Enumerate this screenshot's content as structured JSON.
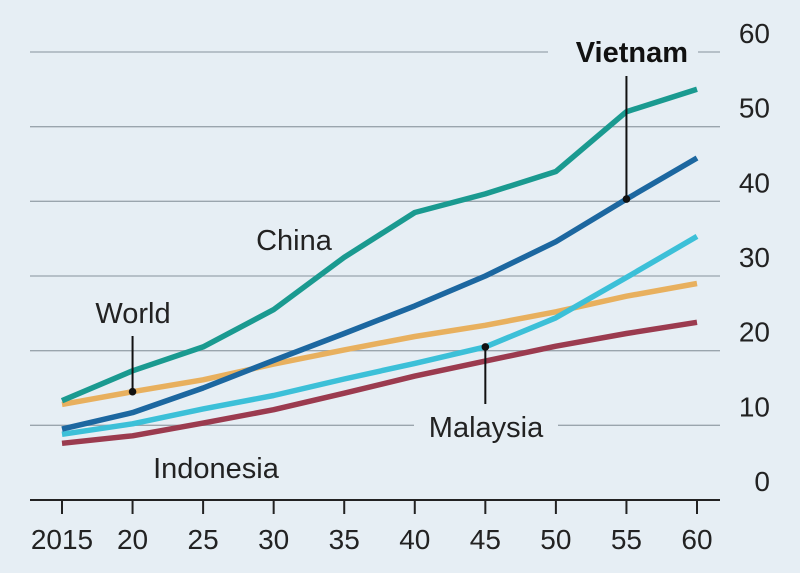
{
  "chart_data": {
    "type": "line",
    "title": "",
    "xlabel": "",
    "ylabel": "",
    "x": [
      2015,
      2020,
      2025,
      2030,
      2035,
      2040,
      2045,
      2050,
      2055,
      2060
    ],
    "xtick_labels": [
      "2015",
      "20",
      "25",
      "30",
      "35",
      "40",
      "45",
      "50",
      "55",
      "60"
    ],
    "yticks": [
      0,
      10,
      20,
      30,
      40,
      50,
      60
    ],
    "ylim": [
      0,
      60
    ],
    "xlim": [
      2015,
      2060
    ],
    "grid": true,
    "series": [
      {
        "name": "China",
        "color": "#1a9a90",
        "values": [
          13.3,
          17.3,
          20.5,
          25.5,
          32.5,
          38.5,
          41.0,
          44.0,
          52.0,
          55.0
        ]
      },
      {
        "name": "Vietnam",
        "color": "#1c67a0",
        "values": [
          9.5,
          11.7,
          15.0,
          18.7,
          22.3,
          26.0,
          30.0,
          34.6,
          40.3,
          45.8
        ]
      },
      {
        "name": "World",
        "color": "#e8b05e",
        "values": [
          12.8,
          14.5,
          16.1,
          18.2,
          20.1,
          21.9,
          23.4,
          25.2,
          27.3,
          29.0
        ]
      },
      {
        "name": "Malaysia",
        "color": "#3cc0d8",
        "values": [
          8.8,
          10.2,
          12.2,
          14.0,
          16.2,
          18.3,
          20.5,
          24.4,
          29.8,
          35.3
        ]
      },
      {
        "name": "Indonesia",
        "color": "#9b3b4f",
        "values": [
          7.6,
          8.6,
          10.3,
          12.1,
          14.3,
          16.6,
          18.6,
          20.6,
          22.3,
          23.8
        ]
      }
    ],
    "annotations": [
      {
        "series": "Vietnam",
        "text": "Vietnam",
        "emphasis": "bold",
        "x": 2055
      },
      {
        "series": "China",
        "text": "China"
      },
      {
        "series": "World",
        "text": "World",
        "x": 2020
      },
      {
        "series": "Malaysia",
        "text": "Malaysia",
        "x": 2045
      },
      {
        "series": "Indonesia",
        "text": "Indonesia"
      }
    ]
  }
}
